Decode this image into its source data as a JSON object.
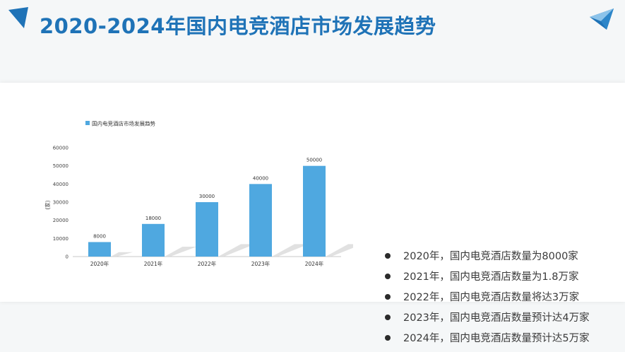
{
  "header": {
    "title": "2020-2024年国内电竞酒店市场发展趋势",
    "left_logo_icon": "blue-triangle-fold-icon",
    "right_logo_icon": "blue-paper-plane-icon"
  },
  "colors": {
    "accent": "#1f73b7",
    "bar": "#4fa8e0",
    "shadow": "#d9d9d9",
    "text": "#3a3a3a"
  },
  "chart_data": {
    "type": "bar",
    "categories": [
      "2020年",
      "2021年",
      "2022年",
      "2023年",
      "2024年"
    ],
    "series": [
      {
        "name": "国内电竞酒店市场发展趋势",
        "values": [
          8000,
          18000,
          30000,
          40000,
          50000
        ]
      }
    ],
    "data_labels": [
      "8000",
      "18000",
      "30000",
      "40000",
      "50000"
    ],
    "ylabel": "(家)",
    "ylim": [
      0,
      60000
    ],
    "yticks": [
      "0",
      "10000",
      "20000",
      "30000",
      "40000",
      "50000",
      "60000"
    ],
    "grid": false,
    "legend_position": "top-left"
  },
  "bullets": [
    "2020年，国内电竞酒店数量为8000家",
    "2021年，国内电竞酒店数量为1.8万家",
    "2022年，国内电竞酒店数量将达3万家",
    "2023年，国内电竞酒店数量预计达4万家",
    "2024年，国内电竞酒店数量预计达5万家"
  ]
}
